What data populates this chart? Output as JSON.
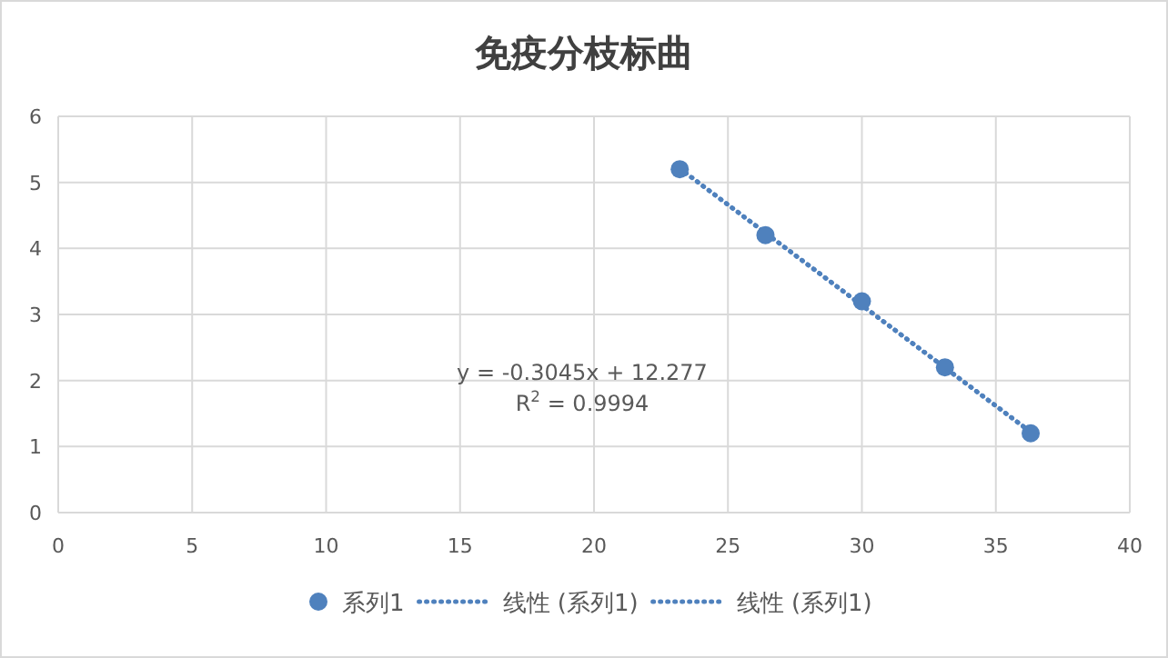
{
  "chart_data": {
    "type": "scatter",
    "title": "免疫分枝标曲",
    "xlim": [
      0,
      40
    ],
    "xticks": [
      0,
      5,
      10,
      15,
      20,
      25,
      30,
      35,
      40
    ],
    "ylim": [
      0,
      6
    ],
    "yticks": [
      0,
      1,
      2,
      3,
      4,
      5,
      6
    ],
    "grid": true,
    "legend": "bottom",
    "series": [
      {
        "name": "系列1",
        "marker": "circle",
        "color": "#4f81bd",
        "x": [
          23.2,
          26.4,
          30.0,
          33.1,
          36.3
        ],
        "values": [
          5.2,
          4.2,
          3.2,
          2.2,
          1.2
        ]
      },
      {
        "name": "线性 (系列1)",
        "type": "line",
        "line_style": "dotted",
        "marker": "none",
        "color": "#4f81bd",
        "x": [
          23.2,
          36.3
        ],
        "values": [
          5.21,
          1.22
        ]
      },
      {
        "name": "线性 (系列1)",
        "type": "line",
        "line_style": "dotted",
        "marker": "none",
        "color": "#4f81bd",
        "x": [
          23.2,
          36.3
        ],
        "values": [
          5.21,
          1.22
        ]
      }
    ],
    "annotations": [
      "y = -0.3045x + 12.277",
      "R$^{2}$ = 0.9994"
    ]
  }
}
